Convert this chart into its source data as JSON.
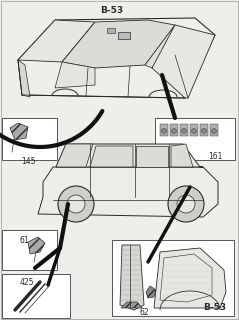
{
  "bg_color": "#f0eeea",
  "line_color": "#2a2a2a",
  "border_color": "#555555",
  "thick_line_color": "#111111",
  "title_b53_top": "B-53",
  "title_b53_bottom": "B-53",
  "label_145": "145",
  "label_161": "161",
  "label_61": "61",
  "label_425": "425",
  "label_62": "62"
}
